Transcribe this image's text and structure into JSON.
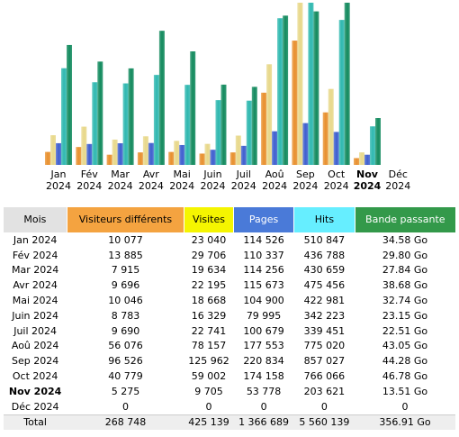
{
  "chart_data": {
    "type": "bar",
    "categories": [
      "Jan 2024",
      "Fév 2024",
      "Mar 2024",
      "Avr 2024",
      "Mai 2024",
      "Juin 2024",
      "Juil 2024",
      "Aoû 2024",
      "Sep 2024",
      "Oct 2024",
      "Nov 2024",
      "Déc 2024"
    ],
    "highlight": 10,
    "category_header": "Mois",
    "series": [
      {
        "name": "Visiteurs différents",
        "color": "#e8902e",
        "header_color": "#f4a340",
        "values": [
          10077,
          13885,
          7915,
          9696,
          10046,
          8783,
          9690,
          56076,
          96526,
          40779,
          5275,
          0
        ],
        "value_labels": [
          "10 077",
          "13 885",
          "7 915",
          "9 696",
          "10 046",
          "8 783",
          "9 690",
          "56 076",
          "96 526",
          "40 779",
          "5 275",
          "0"
        ]
      },
      {
        "name": "Visites",
        "color": "#e8d88a",
        "header_color": "#f5f500",
        "values": [
          23040,
          29706,
          19634,
          22195,
          18668,
          16329,
          22741,
          78157,
          125962,
          59002,
          9705,
          0
        ],
        "value_labels": [
          "23 040",
          "29 706",
          "19 634",
          "22 195",
          "18 668",
          "16 329",
          "22 741",
          "78 157",
          "125 962",
          "59 002",
          "9 705",
          "0"
        ]
      },
      {
        "name": "Pages",
        "color": "#3f5fcf",
        "header_color": "#4a7ad8",
        "values": [
          114526,
          110337,
          114256,
          115673,
          104900,
          79995,
          100679,
          177553,
          220834,
          174158,
          53778,
          0
        ],
        "value_labels": [
          "114 526",
          "110 337",
          "114 256",
          "115 673",
          "104 900",
          "79 995",
          "100 679",
          "177 553",
          "220 834",
          "174 158",
          "53 778",
          "0"
        ]
      },
      {
        "name": "Hits",
        "color": "#2fb8b0",
        "header_color": "#66eeff",
        "values": [
          510847,
          436788,
          430659,
          475456,
          422981,
          342223,
          339451,
          775020,
          857027,
          766066,
          203621,
          0
        ],
        "value_labels": [
          "510 847",
          "436 788",
          "430 659",
          "475 456",
          "422 981",
          "342 223",
          "339 451",
          "775 020",
          "857 027",
          "766 066",
          "203 621",
          "0"
        ]
      },
      {
        "name": "Bande passante",
        "color": "#138a5e",
        "header_color": "#33994a",
        "values": [
          34.58,
          29.8,
          27.84,
          38.68,
          32.74,
          23.15,
          22.51,
          43.05,
          44.28,
          46.78,
          13.51,
          0
        ],
        "value_labels": [
          "34.58 Go",
          "29.80 Go",
          "27.84 Go",
          "38.68 Go",
          "32.74 Go",
          "23.15 Go",
          "22.51 Go",
          "43.05 Go",
          "44.28 Go",
          "46.78 Go",
          "13.51 Go",
          "0"
        ]
      }
    ],
    "totals": {
      "label": "Total",
      "values": [
        "268 748",
        "425 139",
        "1 366 689",
        "5 560 139",
        "356.91 Go"
      ]
    }
  }
}
